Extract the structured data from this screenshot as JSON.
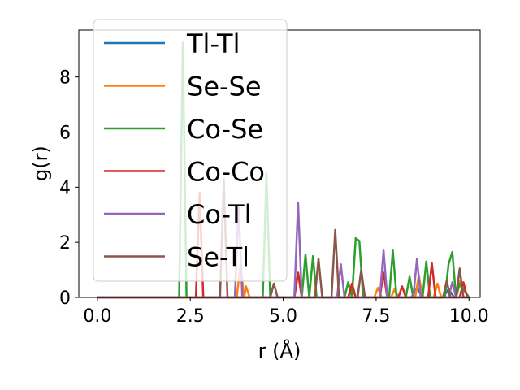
{
  "chart_data": {
    "type": "line",
    "title": "",
    "xlabel": "r (Å)",
    "ylabel": "g(r)",
    "xlim": [
      -0.5,
      10.3
    ],
    "ylim": [
      0,
      9.7
    ],
    "xticks": [
      "0.0",
      "2.5",
      "5.0",
      "7.5",
      "10.0"
    ],
    "yticks": [
      "0",
      "2",
      "4",
      "6",
      "8"
    ],
    "grid": false,
    "legend_position": "top-left",
    "series": [
      {
        "name": "Tl-Tl",
        "color": "#1f77b4",
        "x": [
          0,
          8.45,
          8.6,
          8.75,
          9.3,
          9.45,
          9.6,
          10.0
        ],
        "y": [
          0,
          0,
          0.35,
          0,
          0,
          0.3,
          0,
          0
        ]
      },
      {
        "name": "Se-Se",
        "color": "#ff7f0e",
        "x": [
          0,
          3.75,
          3.85,
          3.95,
          4.0,
          4.1,
          5.3,
          5.4,
          5.5,
          6.75,
          6.85,
          6.95,
          7.45,
          7.55,
          7.65,
          7.9,
          8.0,
          8.1,
          8.55,
          8.65,
          8.75,
          9.05,
          9.15,
          9.25,
          9.65,
          9.75,
          9.85,
          10.0
        ],
        "y": [
          0,
          0,
          1.2,
          0,
          0.4,
          0,
          0,
          0.9,
          0,
          0,
          0.45,
          0,
          0,
          0.35,
          0,
          0,
          0.3,
          0,
          0,
          0.8,
          0,
          0,
          0.5,
          0,
          0,
          0.6,
          0,
          0
        ]
      },
      {
        "name": "Co-Se",
        "color": "#2ca02c",
        "x": [
          0,
          2.2,
          2.3,
          2.4,
          4.45,
          4.55,
          4.65,
          5.5,
          5.6,
          5.7,
          5.8,
          5.9,
          6.0,
          6.65,
          6.75,
          6.85,
          6.95,
          7.05,
          7.15,
          7.85,
          7.95,
          8.05,
          8.3,
          8.4,
          8.5,
          8.75,
          8.85,
          8.95,
          9.35,
          9.45,
          9.55,
          9.65,
          9.75,
          10.0
        ],
        "y": [
          0,
          0,
          9.25,
          0,
          0,
          4.5,
          0,
          0,
          1.55,
          0,
          1.5,
          0,
          0,
          0,
          0.55,
          0,
          2.15,
          2.05,
          0,
          0,
          1.7,
          0,
          0,
          0.75,
          0,
          0,
          1.3,
          0,
          0,
          1.2,
          1.65,
          0,
          0.5,
          0
        ]
      },
      {
        "name": "Co-Co",
        "color": "#d62728",
        "x": [
          0,
          2.65,
          2.75,
          2.85,
          5.3,
          5.4,
          5.5,
          6.75,
          6.85,
          6.95,
          7.6,
          7.7,
          7.8,
          8.1,
          8.2,
          8.3,
          8.9,
          9.0,
          9.1,
          9.75,
          9.85,
          9.95,
          10.0
        ],
        "y": [
          0,
          0,
          3.8,
          0,
          0,
          0.9,
          0,
          0,
          0.5,
          0,
          0,
          0.9,
          0,
          0,
          0.4,
          0,
          0,
          1.25,
          0,
          0,
          0.55,
          0,
          0
        ]
      },
      {
        "name": "Co-Tl",
        "color": "#9467bd",
        "x": [
          0,
          3.7,
          3.8,
          3.9,
          5.3,
          5.4,
          5.5,
          6.45,
          6.55,
          6.65,
          7.6,
          7.7,
          7.8,
          8.5,
          8.6,
          8.7,
          9.45,
          9.55,
          9.65,
          10.0
        ],
        "y": [
          0,
          0,
          3.35,
          0,
          0,
          3.45,
          0,
          0,
          1.2,
          0,
          0,
          1.7,
          0,
          0,
          1.4,
          0,
          0,
          0.55,
          0,
          0
        ]
      },
      {
        "name": "Se-Tl",
        "color": "#8c564b",
        "x": [
          0,
          3.3,
          3.4,
          3.5,
          4.65,
          4.75,
          4.85,
          5.85,
          5.95,
          6.05,
          6.3,
          6.4,
          6.5,
          7.0,
          7.1,
          7.2,
          9.3,
          9.4,
          9.5,
          9.65,
          9.75,
          9.85,
          10.0
        ],
        "y": [
          0,
          0,
          4.3,
          0,
          0,
          0.5,
          0,
          0,
          1.4,
          0,
          0,
          2.45,
          0,
          0,
          1.0,
          0,
          0,
          0.6,
          0,
          0,
          1.05,
          0,
          0
        ]
      }
    ]
  }
}
